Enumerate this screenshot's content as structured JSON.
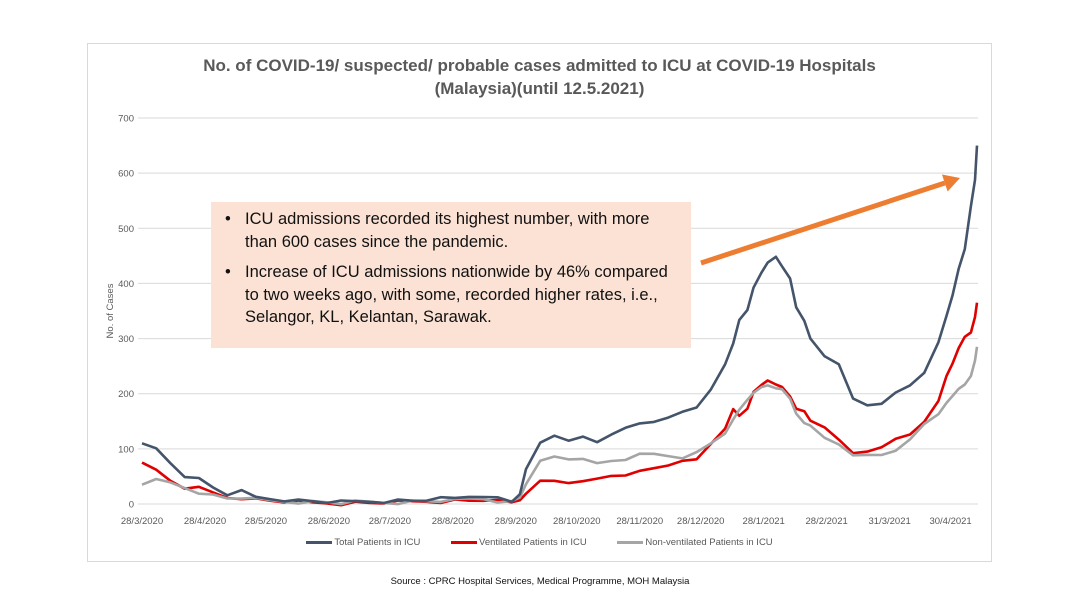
{
  "chart_data": {
    "type": "line",
    "title": "No. of COVID-19/ suspected/ probable cases admitted to ICU at COVID-19 Hospitals (Malaysia)(until 12.5.2021)",
    "title_lines": [
      "No. of COVID-19/ suspected/ probable cases admitted to ICU at COVID-19 Hospitals",
      "(Malaysia)(until 12.5.2021)"
    ],
    "xlabel": "",
    "ylabel": "No. of Cases",
    "ylim": [
      0,
      700
    ],
    "yticks": [
      0,
      100,
      200,
      300,
      400,
      500,
      600,
      700
    ],
    "grid": true,
    "legend_position": "bottom",
    "x_start": "2020-03-28",
    "x_end": "2021-05-12",
    "xtick_labels": [
      "28/3/2020",
      "28/4/2020",
      "28/5/2020",
      "28/6/2020",
      "28/7/2020",
      "28/8/2020",
      "28/9/2020",
      "28/10/2020",
      "28/11/2020",
      "28/12/2020",
      "28/1/2021",
      "28/2/2021",
      "31/3/2021",
      "30/4/2021"
    ],
    "xtick_days": [
      0,
      31,
      61,
      92,
      122,
      153,
      184,
      214,
      245,
      275,
      306,
      337,
      368,
      398
    ],
    "x_days": [
      0,
      7,
      14,
      21,
      28,
      35,
      42,
      49,
      56,
      63,
      70,
      77,
      84,
      91,
      98,
      105,
      112,
      119,
      126,
      133,
      140,
      147,
      154,
      161,
      168,
      175,
      182,
      186,
      189,
      196,
      203,
      210,
      217,
      224,
      231,
      238,
      245,
      252,
      259,
      266,
      273,
      280,
      287,
      291,
      294,
      298,
      301,
      305,
      308,
      312,
      315,
      319,
      322,
      326,
      329,
      336,
      343,
      350,
      357,
      364,
      371,
      378,
      385,
      392,
      396,
      399,
      402,
      405,
      408,
      410,
      411
    ],
    "series": [
      {
        "name": "Total Patients in ICU",
        "color": "#44546a",
        "values": [
          110,
          100,
          75,
          52,
          45,
          30,
          18,
          22,
          12,
          10,
          8,
          6,
          5,
          4,
          3,
          4,
          5,
          5,
          6,
          6,
          8,
          9,
          10,
          14,
          16,
          10,
          4,
          20,
          60,
          110,
          125,
          118,
          120,
          112,
          128,
          135,
          145,
          150,
          160,
          165,
          175,
          210,
          250,
          290,
          335,
          355,
          390,
          420,
          440,
          445,
          430,
          410,
          360,
          330,
          300,
          270,
          250,
          190,
          180,
          185,
          200,
          215,
          240,
          290,
          340,
          380,
          430,
          460,
          540,
          590,
          650
        ]
      },
      {
        "name": "Ventilated Patients in ICU",
        "color": "#e00000",
        "values": [
          75,
          60,
          42,
          30,
          28,
          20,
          12,
          12,
          8,
          6,
          5,
          3,
          2,
          2,
          1,
          2,
          2,
          3,
          3,
          4,
          5,
          5,
          6,
          6,
          8,
          4,
          2,
          8,
          22,
          40,
          42,
          40,
          38,
          45,
          52,
          55,
          58,
          65,
          72,
          75,
          80,
          110,
          140,
          170,
          160,
          175,
          200,
          215,
          225,
          220,
          210,
          195,
          175,
          165,
          150,
          140,
          120,
          90,
          95,
          105,
          115,
          125,
          150,
          190,
          230,
          255,
          285,
          300,
          310,
          340,
          365
        ]
      },
      {
        "name": "Non-ventilated Patients in ICU",
        "color": "#a5a5a5",
        "values": [
          35,
          42,
          38,
          30,
          22,
          15,
          10,
          12,
          8,
          6,
          5,
          4,
          3,
          3,
          2,
          3,
          3,
          3,
          3,
          4,
          5,
          6,
          6,
          9,
          10,
          6,
          3,
          12,
          38,
          75,
          85,
          82,
          85,
          72,
          78,
          82,
          88,
          90,
          88,
          86,
          92,
          110,
          130,
          150,
          170,
          190,
          205,
          210,
          215,
          212,
          205,
          190,
          165,
          150,
          140,
          120,
          110,
          85,
          88,
          90,
          100,
          115,
          145,
          165,
          180,
          195,
          210,
          220,
          230,
          260,
          285
        ]
      }
    ],
    "annotation_arrow": {
      "color": "#ed7d31",
      "from": [
        "2021-01-07",
        430
      ],
      "to": [
        "2021-05-05",
        590
      ]
    }
  },
  "note": {
    "bullet": "•",
    "items": [
      "ICU admissions recorded its highest number, with more than 600 cases since the pandemic.",
      "Increase of ICU admissions nationwide by 46% compared to two weeks ago, with some, recorded higher rates, i.e., Selangor, KL, Kelantan, Sarawak."
    ]
  },
  "source": "Source : CPRC Hospital Services, Medical Programme, MOH Malaysia"
}
